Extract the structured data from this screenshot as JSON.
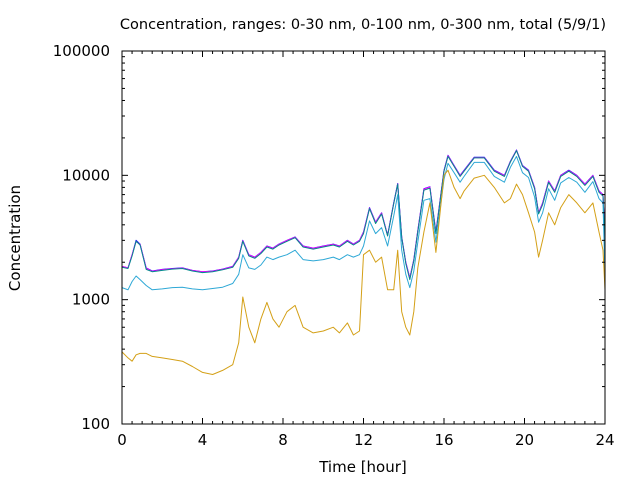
{
  "chart_data": {
    "type": "line",
    "title": "Concentration, ranges: 0-30 nm, 0-100 nm, 0-300 nm, total (5/9/1)",
    "xlabel": "Time [hour]",
    "ylabel": "Concentration",
    "xlim": [
      0,
      24
    ],
    "ylim": [
      100,
      100000
    ],
    "yscale": "log",
    "grid": false,
    "legend": "none",
    "x_ticks": [
      0,
      4,
      8,
      12,
      16,
      20,
      24
    ],
    "x_tick_labels": [
      "0",
      "4",
      "8",
      "12",
      "16",
      "20",
      "24"
    ],
    "y_ticks": [
      100,
      1000,
      10000,
      100000
    ],
    "y_tick_labels": [
      "100",
      "1000",
      "10000",
      "100000"
    ],
    "x": [
      0,
      0.3,
      0.5,
      0.7,
      0.9,
      1.2,
      1.5,
      2,
      2.5,
      3,
      3.5,
      4,
      4.5,
      5,
      5.5,
      5.8,
      6,
      6.3,
      6.6,
      6.9,
      7.2,
      7.5,
      7.8,
      8.2,
      8.6,
      9,
      9.5,
      10,
      10.5,
      10.8,
      11.2,
      11.5,
      11.8,
      12,
      12.3,
      12.6,
      12.9,
      13.2,
      13.5,
      13.7,
      13.9,
      14.1,
      14.3,
      14.5,
      14.7,
      15,
      15.3,
      15.6,
      16,
      16.2,
      16.5,
      16.8,
      17,
      17.5,
      18,
      18.5,
      19,
      19.3,
      19.6,
      19.9,
      20.2,
      20.5,
      20.7,
      20.9,
      21.2,
      21.5,
      21.8,
      22.2,
      22.6,
      23,
      23.4,
      23.7,
      23.9,
      24
    ],
    "series": [
      {
        "color": "#0000ff",
        "values": [
          1850,
          1800,
          2300,
          3000,
          2800,
          1800,
          1700,
          1750,
          1780,
          1800,
          1720,
          1680,
          1700,
          1760,
          1850,
          2200,
          3000,
          2300,
          2200,
          2400,
          2700,
          2600,
          2800,
          3000,
          3200,
          2700,
          2600,
          2700,
          2800,
          2700,
          3000,
          2800,
          3000,
          3500,
          5500,
          4200,
          5000,
          3300,
          6000,
          8600,
          3200,
          2000,
          1500,
          2100,
          3600,
          7800,
          8100,
          3500,
          11000,
          14500,
          12000,
          10000,
          11000,
          14000,
          14000,
          11000,
          10000,
          13000,
          16000,
          12000,
          11000,
          8000,
          5000,
          6000,
          9000,
          7500,
          10000,
          11000,
          10000,
          8500,
          10000,
          7500,
          7000,
          3000
        ]
      },
      {
        "color": "#ff00ff",
        "values": [
          1850,
          1800,
          2300,
          2950,
          2780,
          1790,
          1690,
          1745,
          1775,
          1795,
          1715,
          1675,
          1695,
          1755,
          1845,
          2190,
          2980,
          2290,
          2190,
          2390,
          2690,
          2590,
          2790,
          2990,
          3180,
          2690,
          2590,
          2690,
          2790,
          2690,
          2990,
          2790,
          2990,
          3480,
          5450,
          4180,
          4980,
          3280,
          5950,
          8550,
          3180,
          1990,
          1490,
          2090,
          3580,
          7750,
          8050,
          3480,
          10900,
          14400,
          11900,
          9950,
          10900,
          13900,
          13900,
          10900,
          9950,
          12900,
          15900,
          11900,
          10900,
          7950,
          4980,
          5950,
          8950,
          7450,
          9950,
          10900,
          9950,
          8450,
          9950,
          7450,
          6950,
          2980
        ]
      },
      {
        "color": "#008b8b",
        "values": [
          1820,
          1780,
          2250,
          2950,
          2750,
          1750,
          1680,
          1720,
          1760,
          1780,
          1700,
          1650,
          1680,
          1740,
          1820,
          2150,
          2950,
          2250,
          2150,
          2350,
          2650,
          2550,
          2750,
          2950,
          3150,
          2650,
          2550,
          2650,
          2750,
          2650,
          2950,
          2750,
          2950,
          3400,
          5400,
          4100,
          4900,
          3250,
          5900,
          8500,
          3150,
          1950,
          1450,
          2050,
          3500,
          7600,
          7900,
          3400,
          10800,
          14200,
          11800,
          9800,
          10800,
          13800,
          13800,
          10800,
          9800,
          12800,
          15800,
          11800,
          10800,
          7800,
          4900,
          5800,
          8800,
          7300,
          9800,
          10800,
          9800,
          8300,
          9800,
          7300,
          6800,
          2900
        ]
      },
      {
        "color": "#2ea8d6",
        "values": [
          1250,
          1200,
          1400,
          1550,
          1450,
          1300,
          1200,
          1220,
          1250,
          1260,
          1220,
          1200,
          1230,
          1260,
          1350,
          1600,
          2300,
          1800,
          1750,
          1900,
          2200,
          2100,
          2200,
          2300,
          2500,
          2100,
          2050,
          2100,
          2200,
          2100,
          2300,
          2200,
          2300,
          2700,
          4300,
          3400,
          3800,
          2700,
          4700,
          7000,
          2500,
          1600,
          1250,
          1700,
          2900,
          6300,
          6500,
          2900,
          9300,
          12500,
          10500,
          8800,
          9800,
          12700,
          12700,
          9800,
          8800,
          11600,
          14200,
          10500,
          9600,
          6700,
          4200,
          5000,
          7800,
          6300,
          8700,
          9600,
          8800,
          7300,
          8900,
          6500,
          6000,
          1500
        ]
      },
      {
        "color": "#d4a017",
        "values": [
          380,
          340,
          320,
          360,
          370,
          370,
          350,
          340,
          330,
          320,
          290,
          260,
          250,
          270,
          300,
          450,
          1050,
          600,
          450,
          700,
          950,
          700,
          600,
          800,
          900,
          600,
          540,
          560,
          600,
          540,
          650,
          520,
          560,
          2300,
          2500,
          2000,
          2200,
          1200,
          1200,
          2500,
          800,
          600,
          520,
          800,
          1800,
          3500,
          6000,
          2400,
          10000,
          11000,
          8000,
          6500,
          7500,
          9500,
          10000,
          8000,
          6000,
          6500,
          8500,
          7000,
          5000,
          3500,
          2200,
          3000,
          5000,
          4000,
          5500,
          7000,
          6000,
          5000,
          6000,
          3500,
          2500,
          1200
        ]
      }
    ]
  }
}
